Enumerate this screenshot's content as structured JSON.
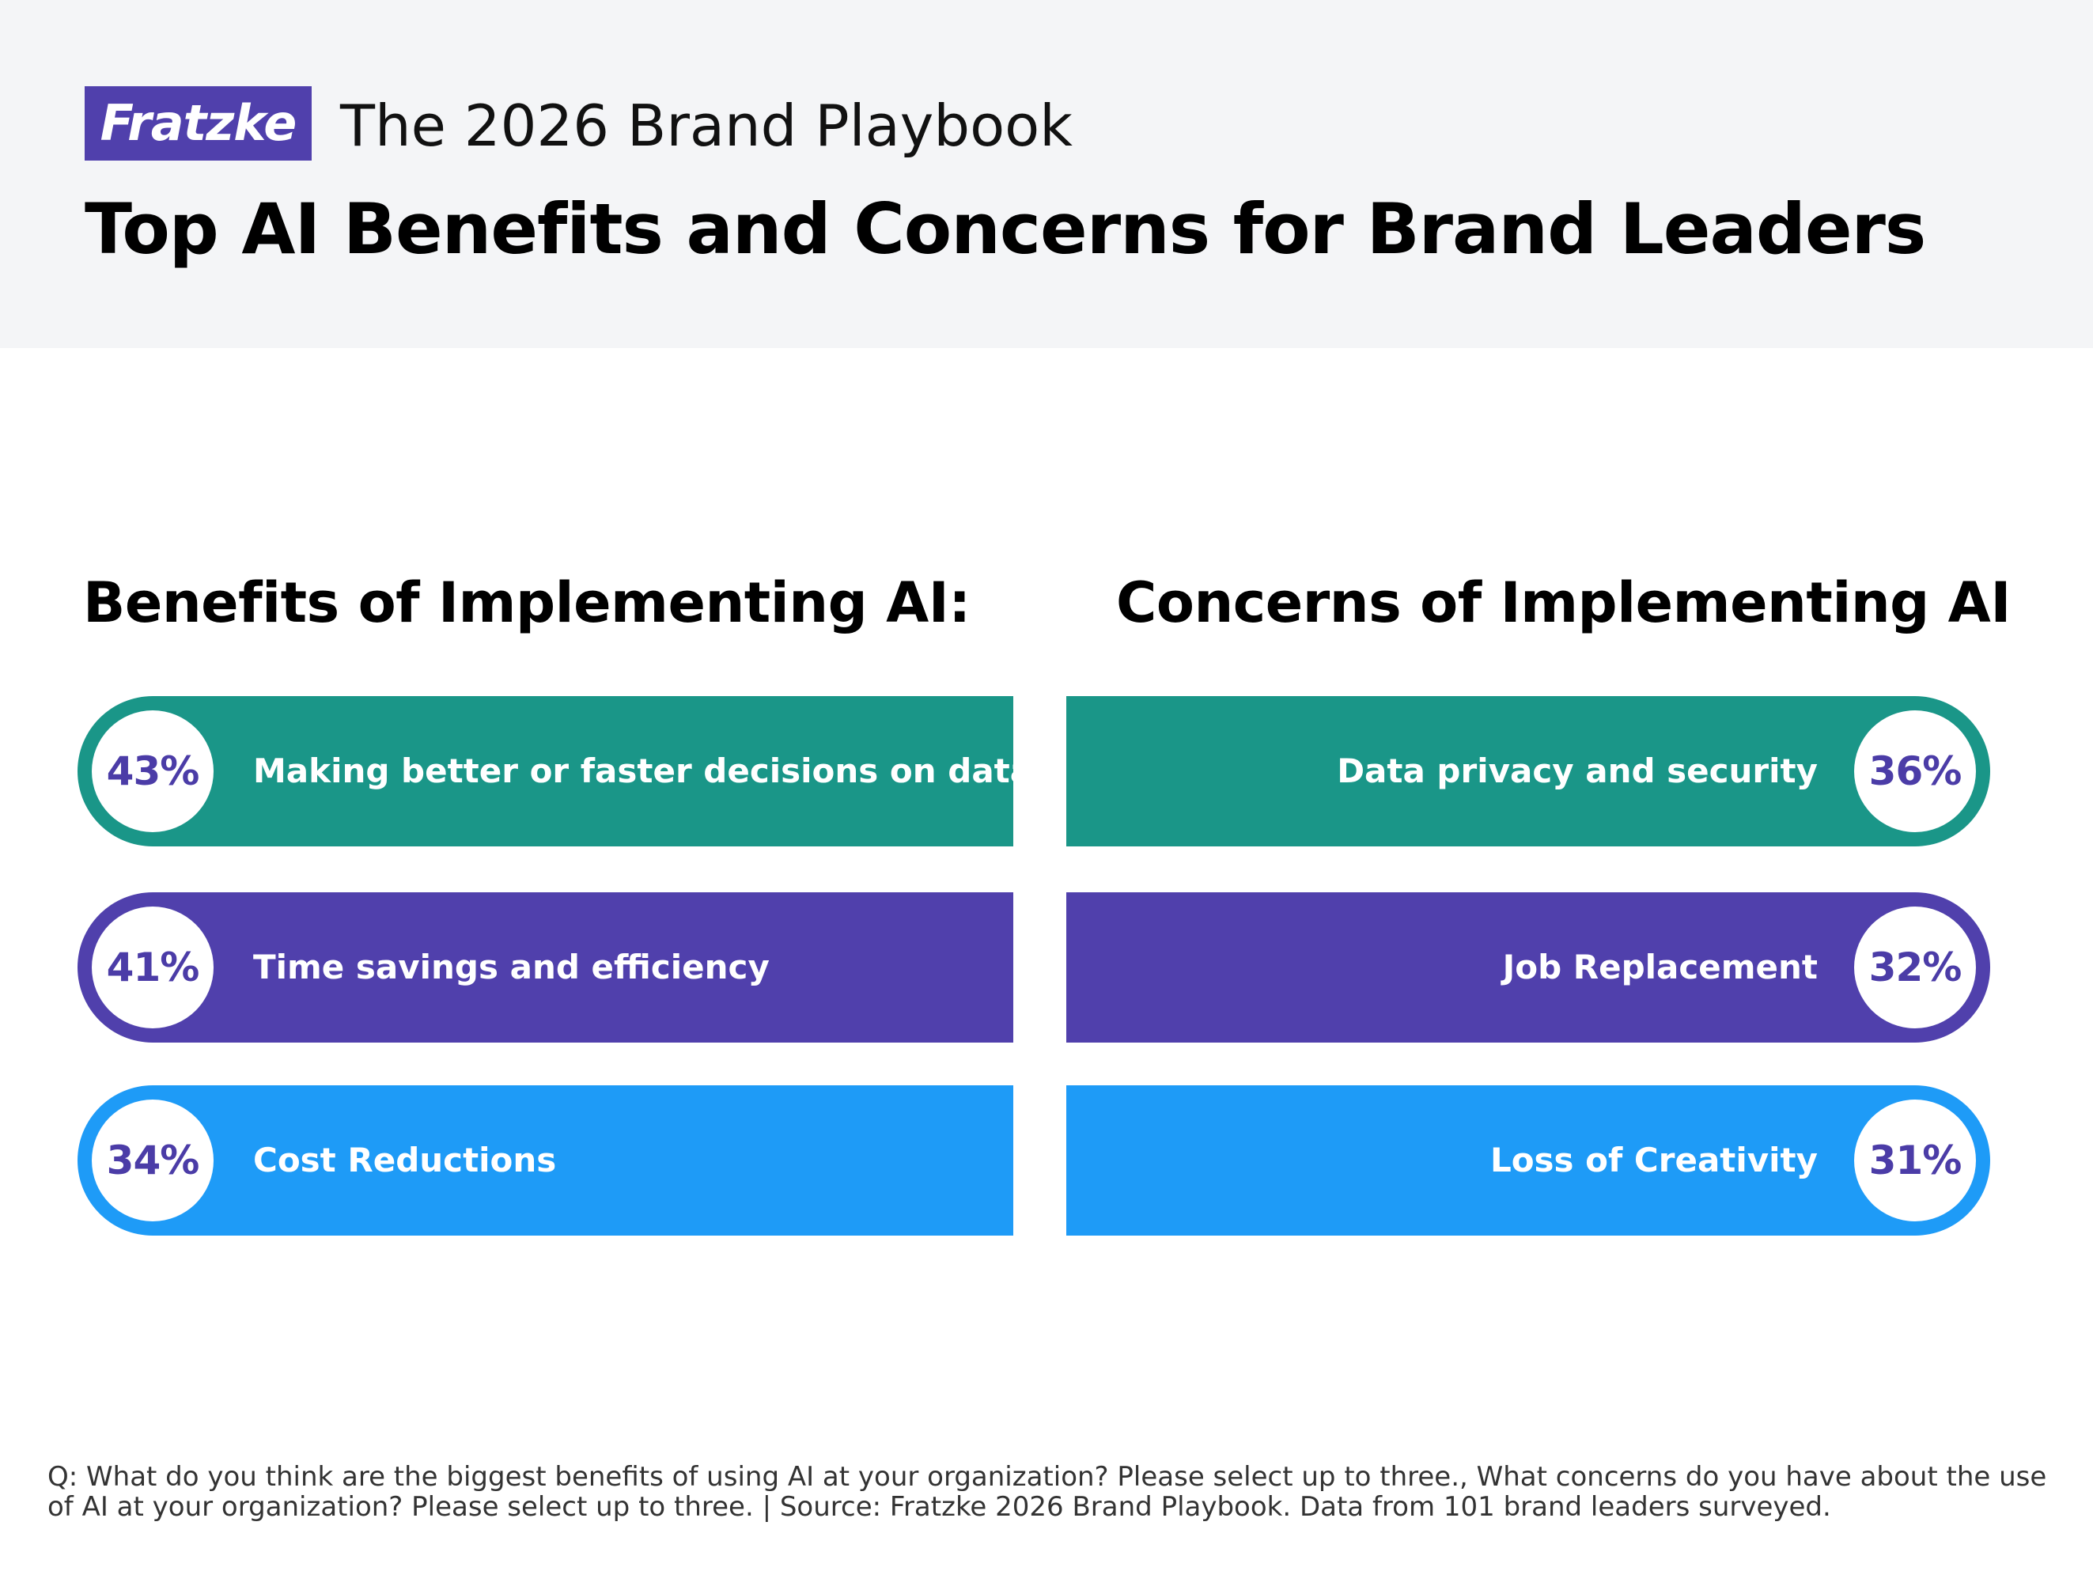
{
  "header": {
    "logo": "Fratzke",
    "subtitle": "The 2026 Brand Playbook",
    "title": "Top AI Benefits and Concerns for Brand Leaders"
  },
  "colors": {
    "teal": "#1a9688",
    "purple": "#5040ac",
    "blue": "#1e9bf7",
    "percent_text": "#4b3ca7",
    "header_bg": "#f4f5f7"
  },
  "chart_data": {
    "type": "bar",
    "unit": "%",
    "groups": [
      {
        "name": "Benefits of Implementing AI:",
        "items": [
          {
            "label": "Making better or faster decisions on data",
            "value": 43,
            "display": "43%",
            "color": "#1a9688"
          },
          {
            "label": "Time savings and efficiency",
            "value": 41,
            "display": "41%",
            "color": "#5040ac"
          },
          {
            "label": "Cost Reductions",
            "value": 34,
            "display": "34%",
            "color": "#1e9bf7"
          }
        ]
      },
      {
        "name": "Concerns of Implementing AI",
        "items": [
          {
            "label": "Data privacy and security",
            "value": 36,
            "display": "36%",
            "color": "#1a9688"
          },
          {
            "label": "Job Replacement",
            "value": 32,
            "display": "32%",
            "color": "#5040ac"
          },
          {
            "label": "Loss of Creativity",
            "value": 31,
            "display": "31%",
            "color": "#1e9bf7"
          }
        ]
      }
    ]
  },
  "footnote": "Q:  What do you think are the biggest benefits of using AI at your organization? Please select up to three., What concerns do you have about the use of AI at your organization? Please select up to three. | Source: Fratzke 2026 Brand Playbook. Data from 101 brand leaders surveyed."
}
